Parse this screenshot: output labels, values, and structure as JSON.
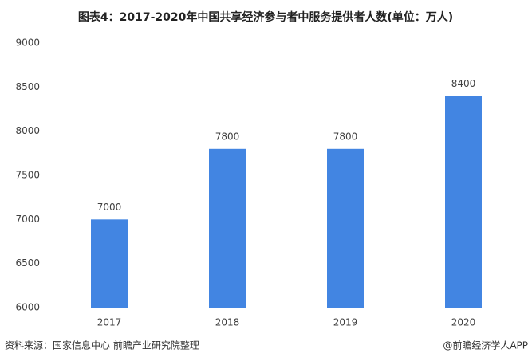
{
  "chart_data": {
    "type": "bar",
    "title": "图表4：2017-2020年中国共享经济参与者中服务提供者人数(单位：万人)",
    "categories": [
      "2017",
      "2018",
      "2019",
      "2020"
    ],
    "values": [
      7000,
      7800,
      7800,
      8400
    ],
    "color": "#4285e2",
    "ylim": [
      6000,
      9000
    ],
    "yticks": [
      6000,
      6500,
      7000,
      7500,
      8000,
      8500,
      9000
    ],
    "grid": false,
    "source": "资料来源：国家信息中心 前瞻产业研究院整理",
    "credit": "@前瞻经济学人APP"
  }
}
